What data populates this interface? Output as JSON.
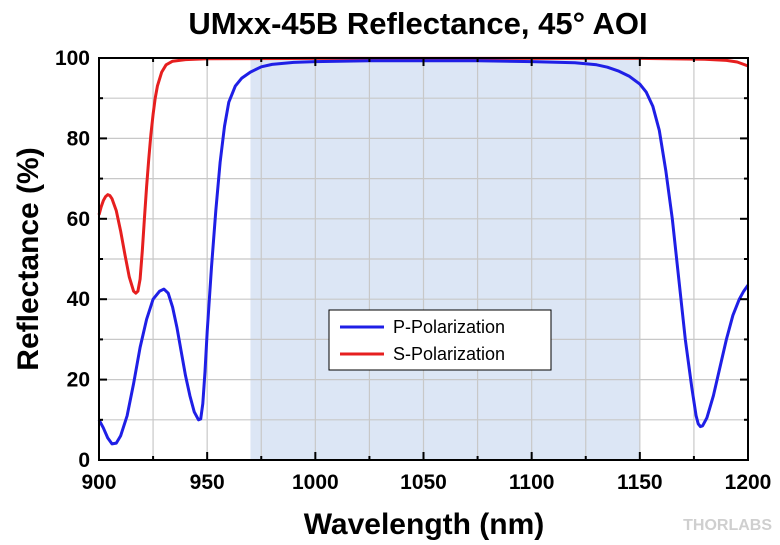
{
  "chart_data": {
    "type": "line",
    "title": "UMxx-45B Reflectance, 45° AOI",
    "xlabel": "Wavelength (nm)",
    "ylabel": "Reflectance (%)",
    "xlim": [
      900,
      1200
    ],
    "ylim": [
      0,
      100
    ],
    "x_ticks": [
      "900",
      "950",
      "1000",
      "1050",
      "1100",
      "1150",
      "1200"
    ],
    "y_ticks": [
      "0",
      "20",
      "40",
      "60",
      "80",
      "100"
    ],
    "grid": true,
    "legend_position": "center",
    "highlight_band": {
      "x_start": 970,
      "x_end": 1150,
      "color": "#dce6f5"
    },
    "series": [
      {
        "name": "P-Polarization",
        "color": "#1f1fe6",
        "points": [
          [
            900,
            10
          ],
          [
            902,
            8
          ],
          [
            904,
            5.5
          ],
          [
            906,
            4
          ],
          [
            908,
            4.2
          ],
          [
            910,
            6
          ],
          [
            913,
            11
          ],
          [
            916,
            19
          ],
          [
            919,
            28
          ],
          [
            922,
            35
          ],
          [
            925,
            40
          ],
          [
            928,
            42
          ],
          [
            930,
            42.5
          ],
          [
            932,
            41.5
          ],
          [
            934,
            38
          ],
          [
            936,
            33
          ],
          [
            938,
            27
          ],
          [
            940,
            21
          ],
          [
            942,
            16
          ],
          [
            944,
            12
          ],
          [
            946,
            10
          ],
          [
            947,
            10.2
          ],
          [
            948,
            14
          ],
          [
            949,
            22
          ],
          [
            950,
            32
          ],
          [
            952,
            48
          ],
          [
            954,
            62
          ],
          [
            956,
            74
          ],
          [
            958,
            83
          ],
          [
            960,
            89
          ],
          [
            963,
            93
          ],
          [
            966,
            95
          ],
          [
            970,
            96.5
          ],
          [
            975,
            97.8
          ],
          [
            980,
            98.4
          ],
          [
            990,
            98.9
          ],
          [
            1000,
            99.1
          ],
          [
            1025,
            99.3
          ],
          [
            1050,
            99.3
          ],
          [
            1075,
            99.3
          ],
          [
            1100,
            99.1
          ],
          [
            1120,
            98.8
          ],
          [
            1130,
            98.3
          ],
          [
            1135,
            97.7
          ],
          [
            1140,
            96.8
          ],
          [
            1145,
            95.5
          ],
          [
            1150,
            93.5
          ],
          [
            1153,
            91.5
          ],
          [
            1156,
            88
          ],
          [
            1159,
            82
          ],
          [
            1162,
            72
          ],
          [
            1165,
            60
          ],
          [
            1168,
            45
          ],
          [
            1171,
            30
          ],
          [
            1174,
            18
          ],
          [
            1176,
            11
          ],
          [
            1177,
            9
          ],
          [
            1178,
            8.3
          ],
          [
            1179,
            8.5
          ],
          [
            1181,
            10.5
          ],
          [
            1184,
            16
          ],
          [
            1187,
            23
          ],
          [
            1190,
            30
          ],
          [
            1193,
            36
          ],
          [
            1196,
            40
          ],
          [
            1198,
            42
          ],
          [
            1200,
            43.5
          ]
        ]
      },
      {
        "name": "S-Polarization",
        "color": "#e61f1f",
        "points": [
          [
            900,
            61
          ],
          [
            901,
            63
          ],
          [
            902,
            64.5
          ],
          [
            903,
            65.5
          ],
          [
            904,
            66
          ],
          [
            905,
            65.8
          ],
          [
            906,
            65
          ],
          [
            908,
            62
          ],
          [
            910,
            57
          ],
          [
            912,
            51
          ],
          [
            914,
            45.5
          ],
          [
            916,
            42
          ],
          [
            917,
            41.5
          ],
          [
            918,
            42
          ],
          [
            919,
            45
          ],
          [
            920,
            52
          ],
          [
            921,
            60
          ],
          [
            922,
            68
          ],
          [
            923,
            75
          ],
          [
            924,
            81
          ],
          [
            925,
            86
          ],
          [
            926,
            90
          ],
          [
            927,
            93
          ],
          [
            929,
            96.5
          ],
          [
            931,
            98.3
          ],
          [
            934,
            99.2
          ],
          [
            940,
            99.6
          ],
          [
            950,
            99.8
          ],
          [
            1000,
            99.9
          ],
          [
            1100,
            99.9
          ],
          [
            1150,
            99.9
          ],
          [
            1180,
            99.7
          ],
          [
            1190,
            99.4
          ],
          [
            1195,
            99
          ],
          [
            1198,
            98.4
          ],
          [
            1200,
            98
          ]
        ]
      }
    ]
  },
  "watermark": "THORLABS"
}
